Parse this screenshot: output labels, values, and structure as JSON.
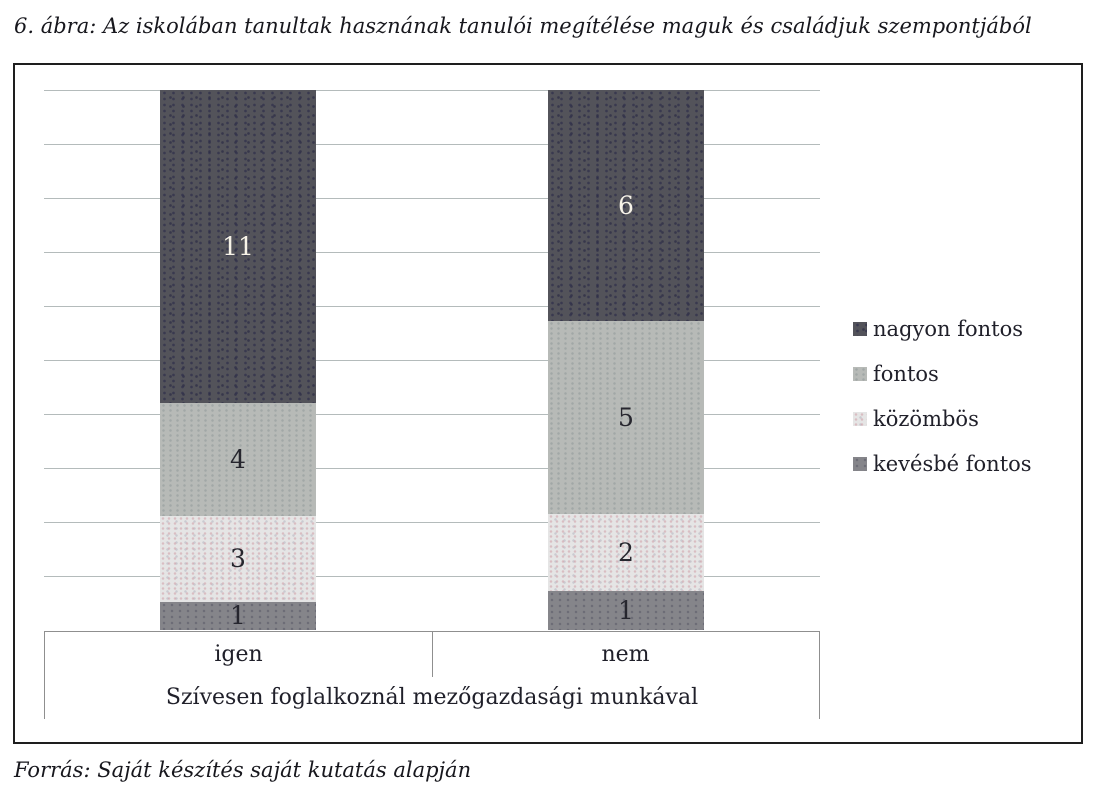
{
  "page": {
    "title": "6. ábra: Az iskolában tanultak hasznának tanulói megítélése maguk és családjuk szempontjából",
    "source_note": "Forrás: Saját készítés saját kutatás alapján"
  },
  "chart_data": {
    "type": "bar",
    "subtype": "stacked-column-100pct",
    "title": "",
    "xlabel": "Szívesen foglalkoznál mezőgazdasági munkával",
    "ylabel": "",
    "categories": [
      "igen",
      "nem"
    ],
    "series": [
      {
        "name": "nagyon fontos",
        "values": [
          11,
          6
        ],
        "color": "#53535a",
        "label_color": "#f7f3e8"
      },
      {
        "name": "fontos",
        "values": [
          4,
          5
        ],
        "color": "#b7bab7",
        "label_color": "#26262e"
      },
      {
        "name": "közömbös",
        "values": [
          3,
          2
        ],
        "color": "#e5e5e5",
        "label_color": "#26262e"
      },
      {
        "name": "kevésbé fontos",
        "values": [
          1,
          1
        ],
        "color": "#85858a",
        "label_color": "#26262e"
      }
    ],
    "stack_order_note": "series listed top-to-bottom as stacked; each column fills full plot height (totals: igen=19, nem=14)",
    "data_labels": "segment values shown inside segments",
    "legend_position": "right",
    "value_axis": {
      "labels_visible": false,
      "gridline_intervals": 10
    },
    "grid": true,
    "gridline_color": "#b4bbbb",
    "frame_border_color": "#1e1e1e",
    "axis_border_color": "#8f8f8f"
  }
}
